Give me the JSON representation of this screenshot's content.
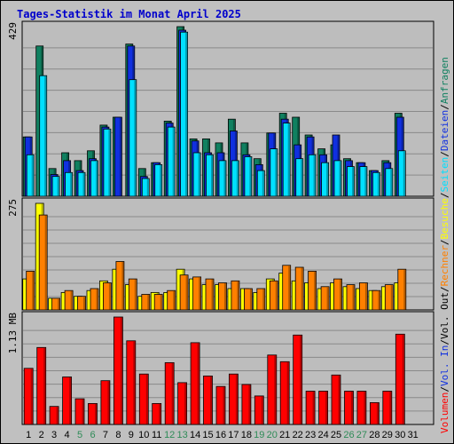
{
  "chart_data": {
    "type": "bar",
    "title": "Tages-Statistik im Monat April 2025",
    "days": [
      "1",
      "2",
      "3",
      "4",
      "5",
      "6",
      "7",
      "8",
      "9",
      "10",
      "11",
      "12",
      "13",
      "14",
      "15",
      "16",
      "17",
      "18",
      "19",
      "20",
      "21",
      "22",
      "23",
      "24",
      "25",
      "26",
      "27",
      "28",
      "29",
      "30",
      "31"
    ],
    "weekend_days": [
      "5",
      "6",
      "12",
      "13",
      "19",
      "20",
      "26",
      "27"
    ],
    "weekday_label_color": "#000000",
    "weekend_label_color": "#2e8b57",
    "panels": [
      {
        "id": "hits",
        "ymax_label": "429",
        "ymax": 429,
        "series": [
          {
            "name": "Anfragen",
            "color": "#108060",
            "values": [
              150,
              380,
              70,
              110,
              90,
              115,
              180,
              200,
              385,
              70,
              85,
              190,
              429,
              145,
              145,
              135,
              195,
              135,
              95,
              160,
              210,
              200,
              155,
              120,
              130,
              95,
              85,
              65,
              90,
              210,
              0
            ]
          },
          {
            "name": "Dateien",
            "color": "#1030e0",
            "values": [
              150,
              0,
              55,
              90,
              65,
              95,
              175,
              200,
              380,
              50,
              85,
              185,
              420,
              140,
              110,
              110,
              165,
              105,
              80,
              160,
              195,
              130,
              150,
              105,
              155,
              90,
              85,
              65,
              85,
              200,
              0
            ]
          },
          {
            "name": "Seiten",
            "color": "#00e0ff",
            "values": [
              105,
              305,
              50,
              60,
              60,
              90,
              170,
              0,
              295,
              45,
              80,
              175,
              415,
              110,
              105,
              90,
              90,
              100,
              65,
              120,
              185,
              95,
              105,
              85,
              90,
              75,
              75,
              60,
              70,
              115,
              0
            ]
          }
        ]
      },
      {
        "id": "visits",
        "ymax_label": "275",
        "ymax": 275,
        "series": [
          {
            "name": "Besuche",
            "color": "#ffff00",
            "values": [
              80,
              275,
              30,
              45,
              35,
              50,
              75,
              105,
              65,
              35,
              45,
              45,
              105,
              80,
              65,
              65,
              55,
              55,
              45,
              80,
              95,
              75,
              70,
              55,
              70,
              60,
              55,
              50,
              60,
              70,
              0
            ]
          },
          {
            "name": "Rechner",
            "color": "#ff8000",
            "values": [
              100,
              245,
              30,
              50,
              35,
              55,
              70,
              125,
              80,
              40,
              40,
              50,
              90,
              85,
              80,
              70,
              75,
              55,
              55,
              75,
              115,
              110,
              100,
              60,
              80,
              65,
              70,
              50,
              65,
              105,
              0
            ]
          }
        ]
      },
      {
        "id": "volume",
        "ymax_label": "1.13 MB",
        "ymax": 1.13,
        "series": [
          {
            "name": "Volumen",
            "color": "#ff0000",
            "values": [
              0.59,
              0.81,
              0.19,
              0.5,
              0.27,
              0.22,
              0.46,
              1.13,
              0.88,
              0.53,
              0.22,
              0.65,
              0.44,
              0.86,
              0.51,
              0.4,
              0.53,
              0.42,
              0.3,
              0.73,
              0.66,
              0.94,
              0.35,
              0.35,
              0.52,
              0.35,
              0.35,
              0.23,
              0.35,
              0.95,
              0
            ]
          }
        ]
      }
    ],
    "legend": [
      {
        "text": "Volumen",
        "color": "#ff0000"
      },
      {
        "text": "/",
        "color": "#000000"
      },
      {
        "text": "Vol. In",
        "color": "#1030e0"
      },
      {
        "text": "/",
        "color": "#000000"
      },
      {
        "text": "Vol. Out",
        "color": "#000000"
      },
      {
        "text": "/",
        "color": "#000000"
      },
      {
        "text": "Rechner",
        "color": "#ff8000"
      },
      {
        "text": "/",
        "color": "#000000"
      },
      {
        "text": "Besuche",
        "color": "#ffff00"
      },
      {
        "text": "/",
        "color": "#000000"
      },
      {
        "text": "Seiten",
        "color": "#00e0ff"
      },
      {
        "text": "/",
        "color": "#000000"
      },
      {
        "text": "Dateien",
        "color": "#1030e0"
      },
      {
        "text": "/",
        "color": "#000000"
      },
      {
        "text": "Anfragen",
        "color": "#108060"
      }
    ],
    "grid": true,
    "legend_placement": "right-vertical"
  }
}
